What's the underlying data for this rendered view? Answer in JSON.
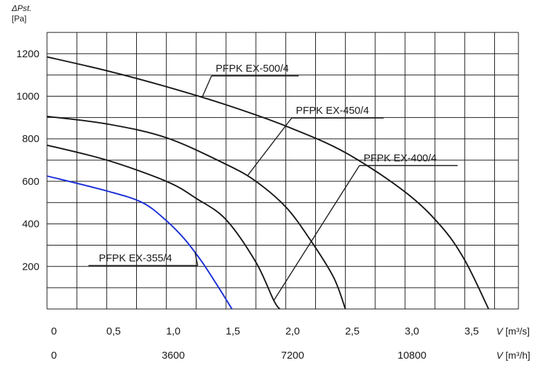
{
  "chart_data": {
    "type": "line",
    "title": "",
    "ylabel_symbol": "ΔPst.",
    "ylabel_unit": "[Pa]",
    "ylim": [
      0,
      1300
    ],
    "yticks": [
      200,
      400,
      600,
      800,
      1000,
      1200
    ],
    "xlim": [
      0,
      3.95
    ],
    "xticks_m3s": [
      0,
      0.5,
      1.0,
      1.5,
      2.0,
      2.5,
      3.0,
      3.5
    ],
    "xtick_labels_m3s": [
      "0",
      "0,5",
      "1,0",
      "1,5",
      "2,0",
      "2,5",
      "3,0",
      "3,5"
    ],
    "xticks_m3h": [
      0,
      3600,
      7200,
      10800
    ],
    "xtick_labels_m3h": [
      "0",
      "3600",
      "7200",
      "10800"
    ],
    "xlabel_m3s_symbol": "V",
    "xlabel_m3s_unit": "[m³/s]",
    "xlabel_m3h_symbol": "V",
    "xlabel_m3h_unit": "[m³/h]",
    "grid": true,
    "series": [
      {
        "name": "PFPK EX-500/4",
        "color": "#1a1a1a",
        "points": [
          [
            0,
            1185
          ],
          [
            0.5,
            1120
          ],
          [
            1.0,
            1045
          ],
          [
            1.5,
            960
          ],
          [
            2.0,
            860
          ],
          [
            2.5,
            735
          ],
          [
            3.0,
            550
          ],
          [
            3.3,
            390
          ],
          [
            3.5,
            230
          ],
          [
            3.7,
            0
          ]
        ]
      },
      {
        "name": "PFPK EX-450/4",
        "color": "#1a1a1a",
        "points": [
          [
            0,
            905
          ],
          [
            0.5,
            870
          ],
          [
            1.0,
            805
          ],
          [
            1.5,
            680
          ],
          [
            1.75,
            600
          ],
          [
            2.0,
            480
          ],
          [
            2.2,
            330
          ],
          [
            2.4,
            150
          ],
          [
            2.5,
            0
          ]
        ]
      },
      {
        "name": "PFPK EX-400/4",
        "color": "#1a1a1a",
        "points": [
          [
            0,
            770
          ],
          [
            0.5,
            700
          ],
          [
            1.0,
            600
          ],
          [
            1.25,
            520
          ],
          [
            1.5,
            420
          ],
          [
            1.75,
            220
          ],
          [
            1.9,
            40
          ],
          [
            1.95,
            0
          ]
        ]
      },
      {
        "name": "PFPK EX-355/4",
        "color": "#1a2fd6",
        "points": [
          [
            0,
            625
          ],
          [
            0.5,
            555
          ],
          [
            0.8,
            500
          ],
          [
            1.0,
            415
          ],
          [
            1.15,
            330
          ],
          [
            1.3,
            220
          ],
          [
            1.45,
            90
          ],
          [
            1.55,
            0
          ]
        ]
      }
    ],
    "annotations": [
      {
        "text": "PFPK EX-500/4",
        "series": 0,
        "at_x": 1.3
      },
      {
        "text": "PFPK EX-450/4",
        "series": 1,
        "at_x": 1.68
      },
      {
        "text": "PFPK EX-400/4",
        "series": 2,
        "at_x": 1.9
      },
      {
        "text": "PFPK EX-355/4",
        "series": 3,
        "at_x": 1.24
      }
    ]
  }
}
